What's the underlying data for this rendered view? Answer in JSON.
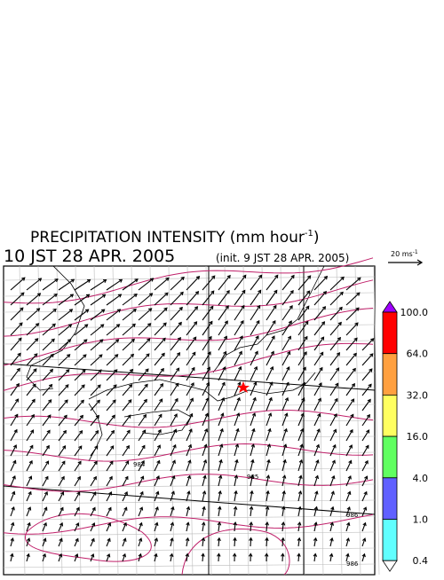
{
  "header": {
    "title_main": "PRECIPITATION INTENSITY (mm hour",
    "title_exp": "-1",
    "title_close": ")",
    "valid_time": "10 JST 28 APR. 2005",
    "init_time": "(init. 9 JST 28 APR. 2005)"
  },
  "vector_key": {
    "unit": "20 ms",
    "unit_exp": "-1"
  },
  "colorbar": {
    "levels": [
      {
        "value": 100,
        "label": "100.0"
      },
      {
        "value": 64,
        "label": "64.0"
      },
      {
        "value": 32,
        "label": "32.0"
      },
      {
        "value": 16,
        "label": "16.0"
      },
      {
        "value": 4,
        "label": "4.0"
      },
      {
        "value": 1,
        "label": "1.0"
      },
      0.4
    ],
    "colors": [
      "#ff0000",
      "#ffa040",
      "#ffff60",
      "#60ff60",
      "#6060ff",
      "#60ffff"
    ],
    "over_color": "#a000ff",
    "under_color": "#ffffff"
  },
  "contour_labels": [
    "984",
    "985",
    "986",
    "986"
  ]
}
